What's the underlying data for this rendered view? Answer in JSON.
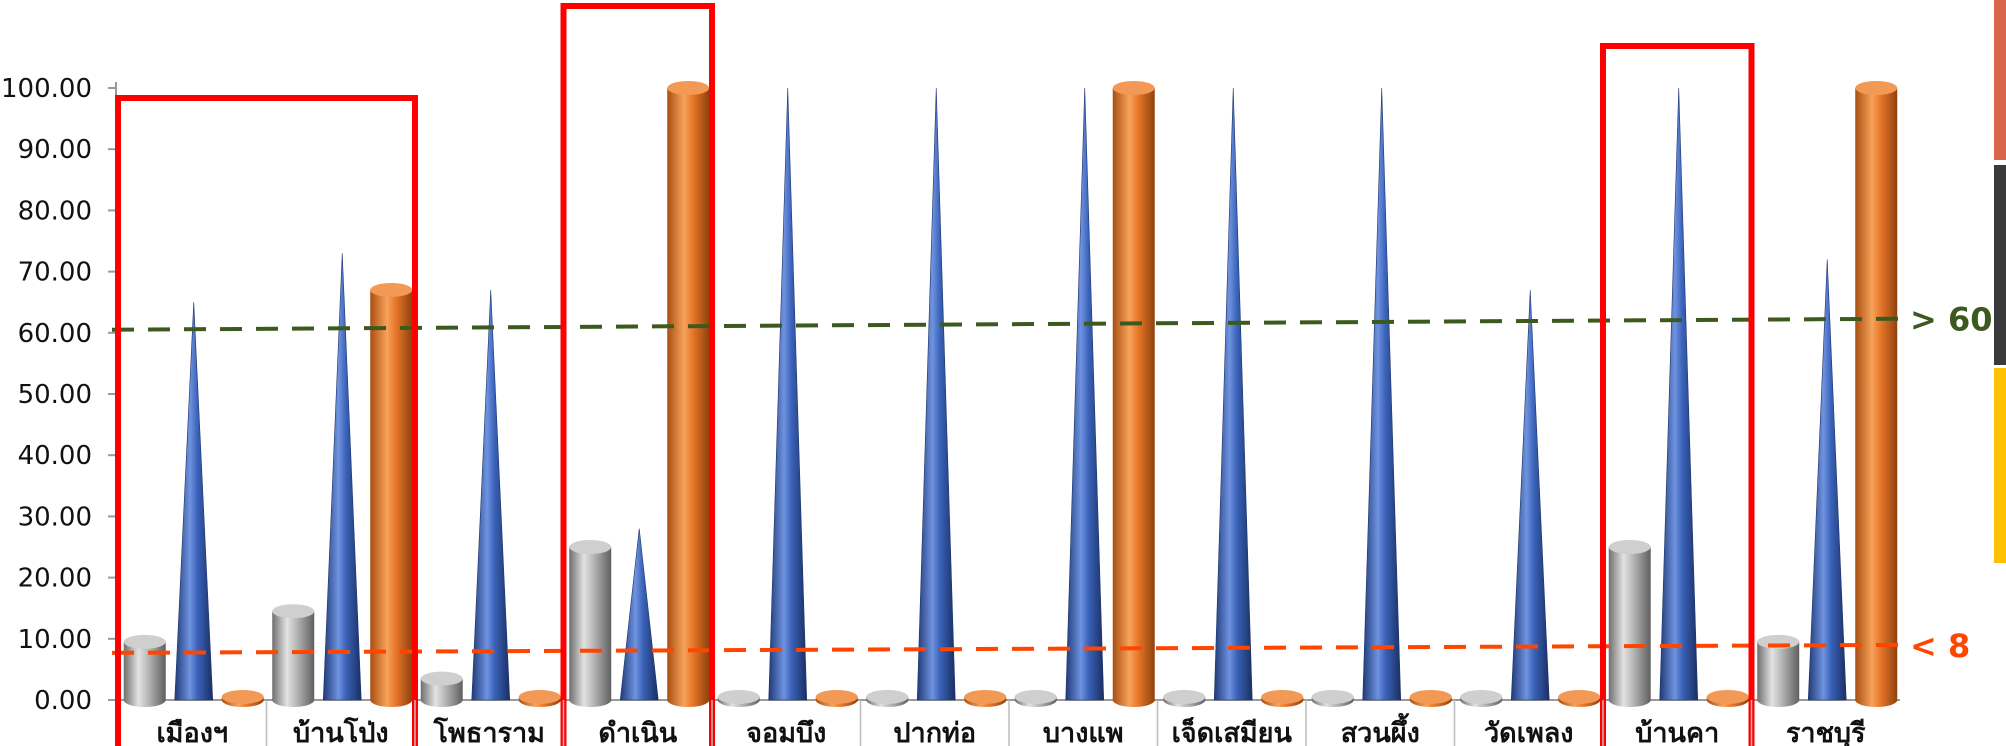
{
  "chart_data": {
    "type": "bar",
    "style": "3d cylinders and cones",
    "ylim": [
      0,
      100
    ],
    "ytick_step": 10,
    "ytick_format": "2-decimals",
    "grid": false,
    "legend": "none",
    "categories": [
      "เมืองฯ",
      "บ้านโป่ง",
      "โพธาราม",
      "ดำเนิน",
      "จอมบึง",
      "ปากท่อ",
      "บางแพ",
      "เจ็ดเสมียน",
      "สวนผึ้ง",
      "วัดเพลง",
      "บ้านคา",
      "ราชบุรี"
    ],
    "series": [
      {
        "shape": "cylinder",
        "color": "#A6A6A6",
        "values": [
          9.5,
          14.5,
          3.5,
          25,
          0.5,
          0.5,
          0.5,
          0.5,
          0.5,
          0.5,
          25,
          9.5
        ]
      },
      {
        "shape": "cone",
        "color": "#3A62B8",
        "values": [
          65,
          73,
          67,
          28,
          100,
          100,
          100,
          100,
          100,
          67,
          100,
          72
        ]
      },
      {
        "shape": "cylinder",
        "color": "#E8782A",
        "values": [
          0.5,
          67,
          0.5,
          100,
          0.5,
          0.5,
          100,
          0.5,
          0.5,
          0.5,
          0.5,
          100
        ]
      }
    ],
    "reference_lines": [
      {
        "label": "> 60",
        "y_start": 60.5,
        "y_end": 62.3,
        "color": "#3D5A1E"
      },
      {
        "label": "< 8",
        "y_start": 7.7,
        "y_end": 9.0,
        "color": "#FF4500"
      }
    ],
    "highlights": [
      {
        "from_category": 0,
        "to_category": 1,
        "color": "#FF0000"
      },
      {
        "from_category": 3,
        "to_category": 3,
        "color": "#FF0000"
      },
      {
        "from_category": 10,
        "to_category": 10,
        "color": "#FF0000"
      }
    ]
  },
  "edge_strip_colors": [
    "#D9654B",
    "#3A3A3A",
    "#FFC000"
  ]
}
